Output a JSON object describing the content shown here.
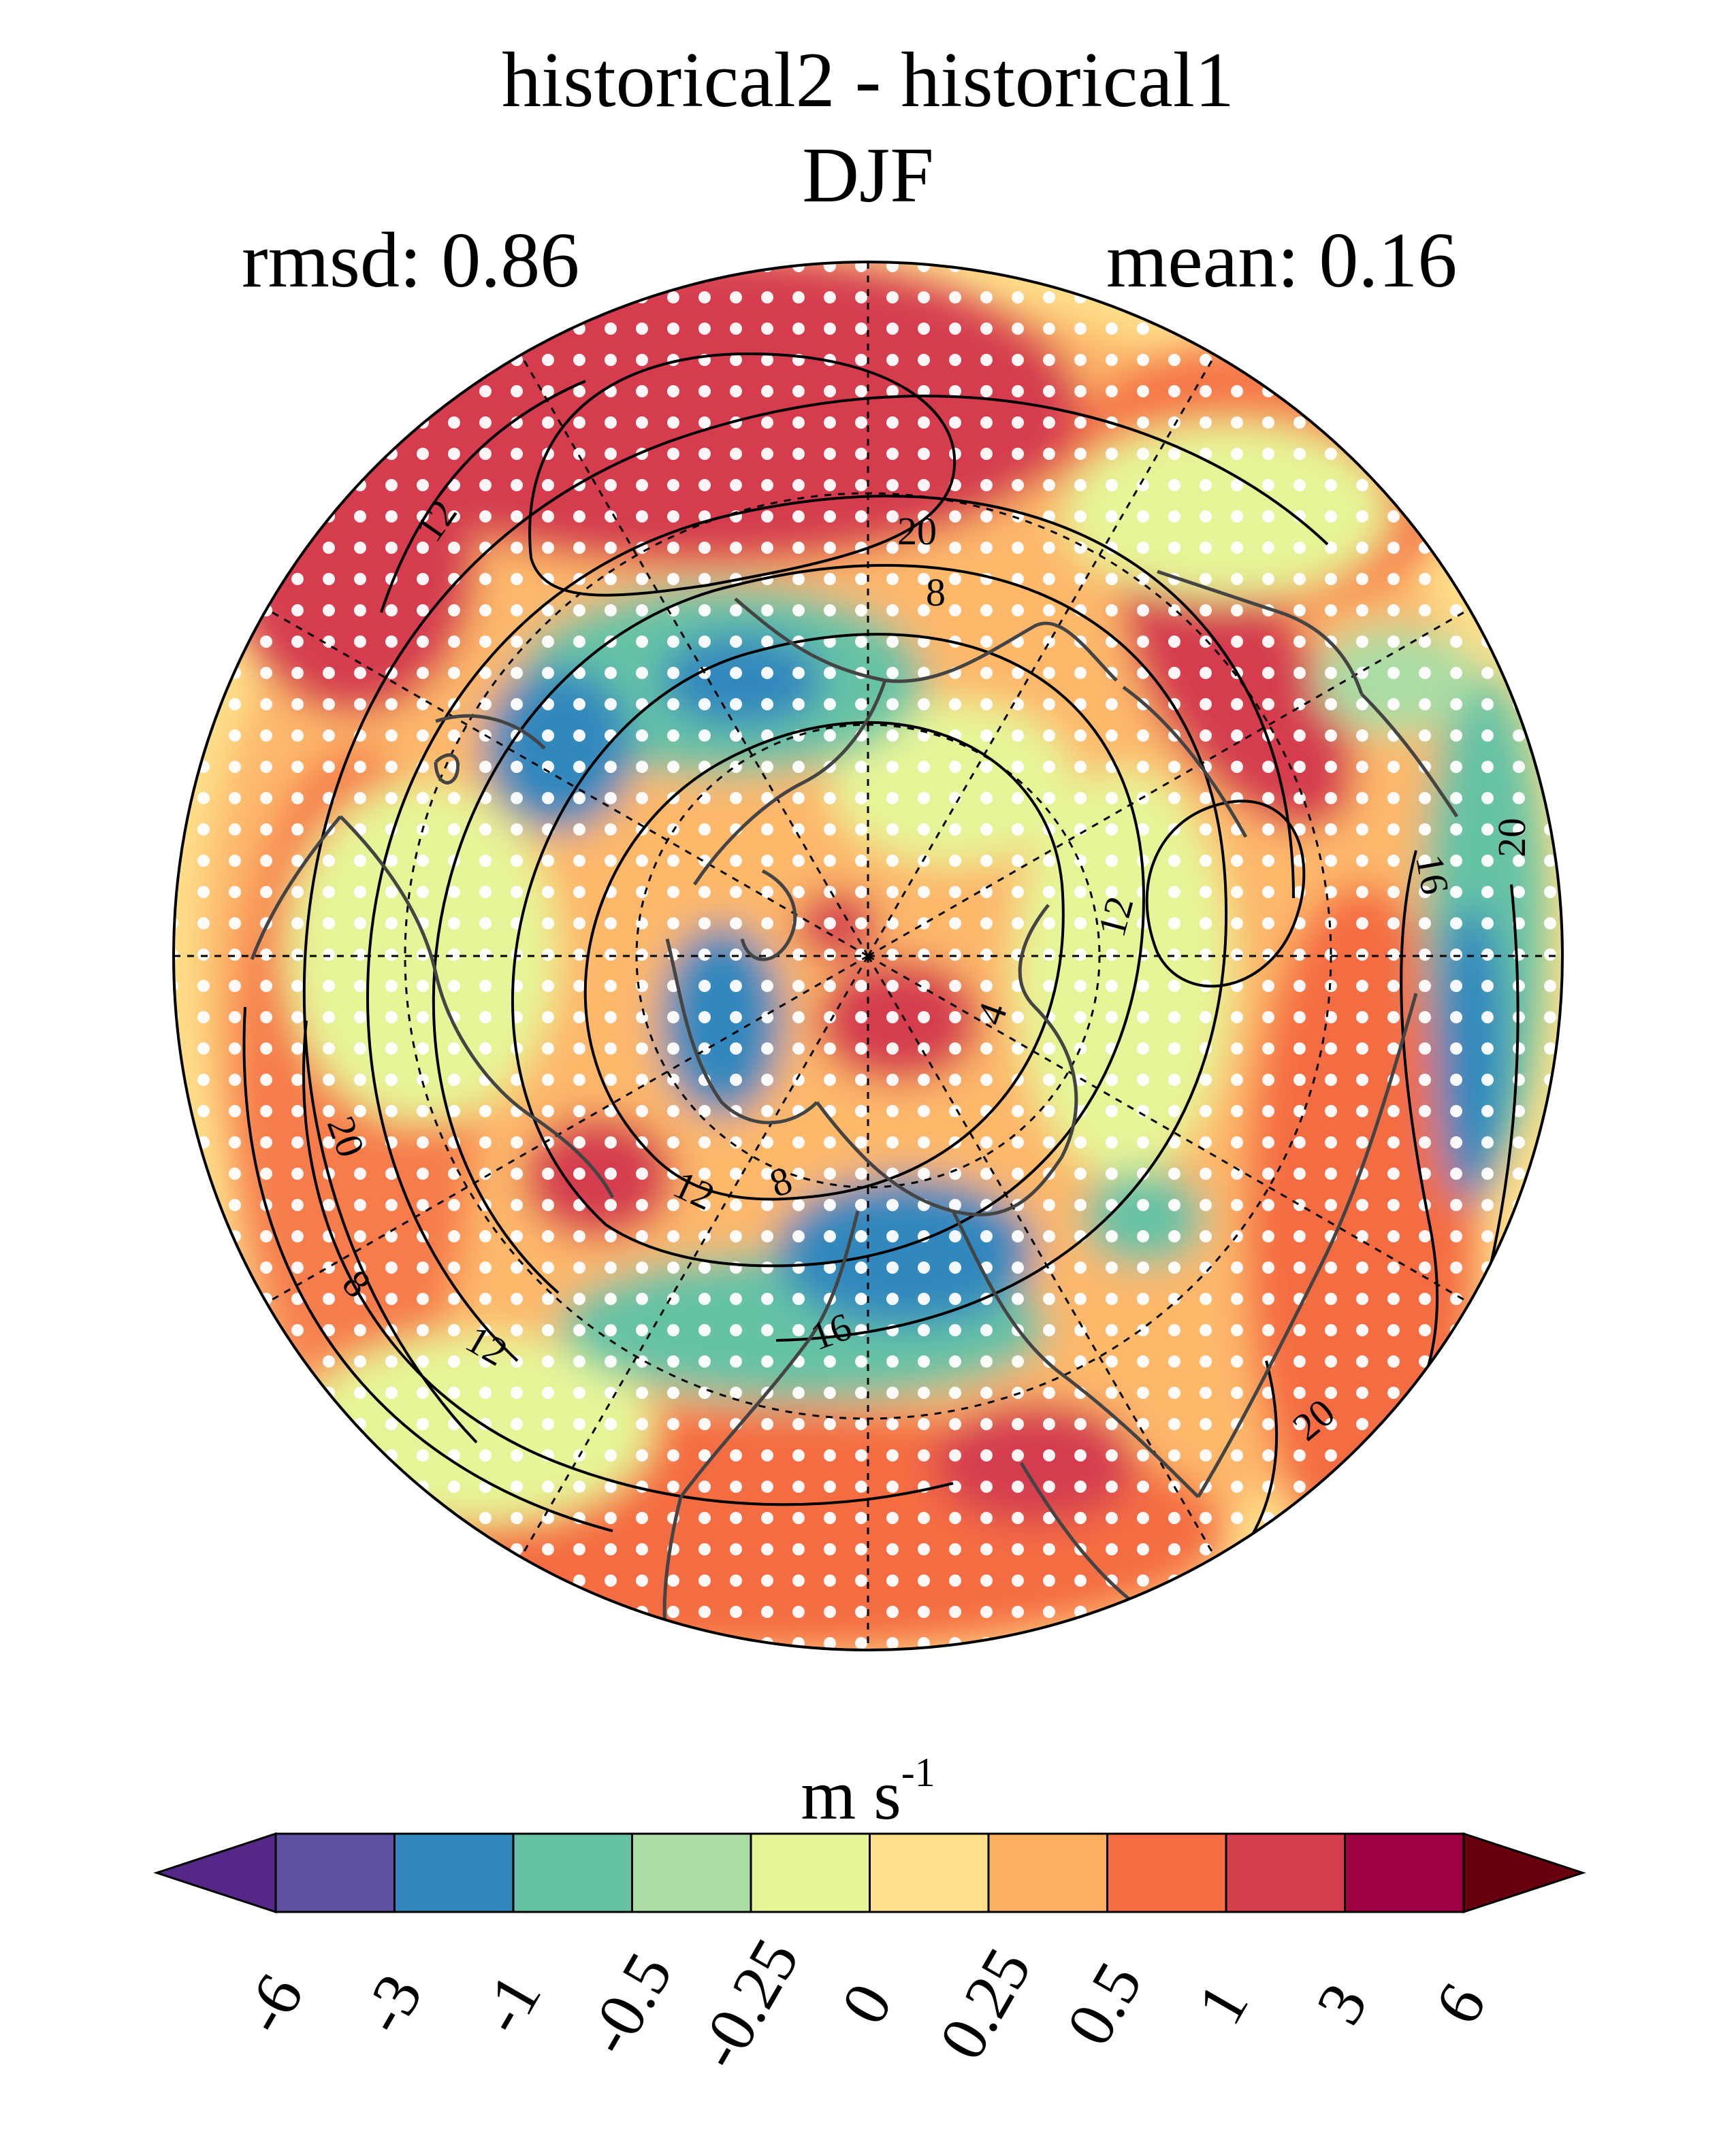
{
  "title": {
    "line1": "historical2 - historical1",
    "line2": "DJF",
    "rmsd": "rmsd: 0.86",
    "mean": "mean: 0.16"
  },
  "colorbar": {
    "units_base": "m s",
    "units_exp": "-1",
    "ticks": [
      "-6",
      "-3",
      "-1",
      "-0.5",
      "-0.25",
      "0",
      "0.25",
      "0.5",
      "1",
      "3",
      "6"
    ],
    "colors": [
      "#5e4fa2",
      "#3288bd",
      "#66c2a5",
      "#abdda4",
      "#e6f598",
      "#fee08b",
      "#fdae61",
      "#f46d43",
      "#d53e4f",
      "#9e0142"
    ],
    "under_color": "#542788",
    "over_color": "#67000d"
  },
  "contour_labels": [
    "12",
    "20",
    "8",
    "16",
    "4"
  ],
  "map": {
    "projection": "north-polar-stereographic",
    "stippling": true,
    "coastlines": true,
    "graticule": "dashed"
  }
}
